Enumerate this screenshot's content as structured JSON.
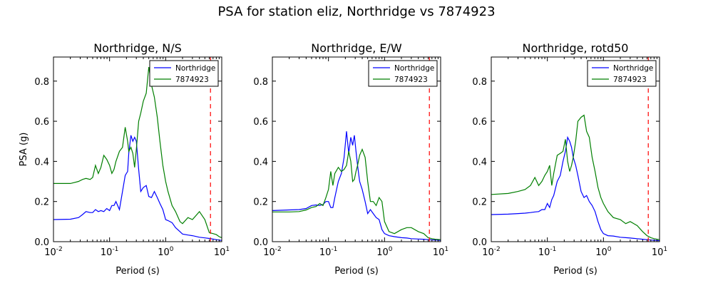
{
  "suptitle": "PSA for station eliz, Northridge vs 7874923",
  "chart_data": [
    {
      "type": "line",
      "title": "Northridge, N/S",
      "xlabel": "Period (s)",
      "ylabel": "PSA (g)",
      "xscale": "log",
      "xlim": [
        0.01,
        10
      ],
      "ylim": [
        0,
        0.92
      ],
      "x_ticks": [
        0.01,
        0.1,
        1,
        10
      ],
      "x_tick_labels": [
        [
          "10",
          "-2"
        ],
        [
          "10",
          "-1"
        ],
        [
          "10",
          "0"
        ],
        [
          "10",
          "1"
        ]
      ],
      "y_ticks": [
        0,
        0.2,
        0.4,
        0.6,
        0.8
      ],
      "y_tick_labels": [
        "0.0",
        "0.2",
        "0.4",
        "0.6",
        "0.8"
      ],
      "legend_position": "top-right",
      "vline": {
        "x": 6.3,
        "color": "#ff0000",
        "style": "dashed"
      },
      "series": [
        {
          "name": "Northridge",
          "color": "#0000ff",
          "x": [
            0.01,
            0.02,
            0.028,
            0.033,
            0.038,
            0.045,
            0.05,
            0.056,
            0.063,
            0.07,
            0.079,
            0.089,
            0.1,
            0.11,
            0.12,
            0.13,
            0.15,
            0.17,
            0.19,
            0.21,
            0.22,
            0.24,
            0.26,
            0.28,
            0.3,
            0.33,
            0.36,
            0.4,
            0.45,
            0.5,
            0.56,
            0.63,
            0.71,
            0.79,
            0.89,
            1.0,
            1.1,
            1.3,
            1.5,
            1.8,
            2.0,
            2.5,
            3.0,
            4.0,
            5.0,
            6.0,
            7.0,
            8.0,
            9.0,
            10.0
          ],
          "y": [
            0.11,
            0.112,
            0.12,
            0.135,
            0.15,
            0.145,
            0.145,
            0.16,
            0.15,
            0.155,
            0.15,
            0.165,
            0.155,
            0.18,
            0.18,
            0.2,
            0.16,
            0.25,
            0.33,
            0.35,
            0.44,
            0.53,
            0.5,
            0.52,
            0.5,
            0.36,
            0.25,
            0.27,
            0.28,
            0.225,
            0.22,
            0.25,
            0.22,
            0.19,
            0.16,
            0.11,
            0.105,
            0.095,
            0.07,
            0.05,
            0.038,
            0.033,
            0.03,
            0.022,
            0.019,
            0.016,
            0.013,
            0.01,
            0.008,
            0.006
          ]
        },
        {
          "name": "7874923",
          "color": "#007f00",
          "x": [
            0.01,
            0.02,
            0.028,
            0.033,
            0.038,
            0.045,
            0.05,
            0.056,
            0.063,
            0.07,
            0.079,
            0.089,
            0.1,
            0.11,
            0.12,
            0.13,
            0.15,
            0.17,
            0.19,
            0.21,
            0.22,
            0.24,
            0.26,
            0.28,
            0.3,
            0.33,
            0.36,
            0.4,
            0.45,
            0.5,
            0.56,
            0.63,
            0.71,
            0.79,
            0.89,
            1.0,
            1.1,
            1.3,
            1.5,
            1.8,
            2.0,
            2.5,
            3.0,
            4.0,
            5.0,
            6.0,
            7.0,
            8.0,
            9.0,
            10.0
          ],
          "y": [
            0.29,
            0.29,
            0.3,
            0.31,
            0.315,
            0.31,
            0.32,
            0.38,
            0.34,
            0.37,
            0.43,
            0.41,
            0.38,
            0.34,
            0.36,
            0.4,
            0.45,
            0.47,
            0.57,
            0.5,
            0.45,
            0.47,
            0.44,
            0.37,
            0.46,
            0.6,
            0.64,
            0.7,
            0.74,
            0.87,
            0.78,
            0.72,
            0.62,
            0.5,
            0.38,
            0.3,
            0.25,
            0.18,
            0.15,
            0.1,
            0.09,
            0.12,
            0.11,
            0.15,
            0.11,
            0.045,
            0.04,
            0.035,
            0.025,
            0.02
          ]
        }
      ]
    },
    {
      "type": "line",
      "title": "Northridge, E/W",
      "xlabel": "Period (s)",
      "ylabel": "",
      "xscale": "log",
      "xlim": [
        0.01,
        10
      ],
      "ylim": [
        0,
        0.92
      ],
      "x_ticks": [
        0.01,
        0.1,
        1,
        10
      ],
      "x_tick_labels": [
        [
          "10",
          "-2"
        ],
        [
          "10",
          "-1"
        ],
        [
          "10",
          "0"
        ],
        [
          "10",
          "1"
        ]
      ],
      "y_ticks": [
        0,
        0.2,
        0.4,
        0.6,
        0.8
      ],
      "y_tick_labels": [
        "0.0",
        "0.2",
        "0.4",
        "0.6",
        "0.8"
      ],
      "legend_position": "top-right",
      "vline": {
        "x": 6.3,
        "color": "#ff0000",
        "style": "dashed"
      },
      "series": [
        {
          "name": "Northridge",
          "color": "#0000ff",
          "x": [
            0.01,
            0.02,
            0.03,
            0.04,
            0.05,
            0.06,
            0.07,
            0.08,
            0.09,
            0.1,
            0.11,
            0.12,
            0.13,
            0.15,
            0.17,
            0.19,
            0.21,
            0.23,
            0.25,
            0.27,
            0.29,
            0.31,
            0.33,
            0.36,
            0.4,
            0.45,
            0.5,
            0.56,
            0.63,
            0.71,
            0.8,
            0.9,
            1.0,
            1.2,
            1.5,
            2.0,
            2.5,
            3.0,
            4.0,
            5.0,
            6.0,
            7.0,
            8.0,
            10.0
          ],
          "y": [
            0.155,
            0.158,
            0.16,
            0.165,
            0.18,
            0.183,
            0.18,
            0.185,
            0.2,
            0.2,
            0.17,
            0.17,
            0.22,
            0.3,
            0.34,
            0.42,
            0.55,
            0.44,
            0.52,
            0.48,
            0.53,
            0.45,
            0.38,
            0.3,
            0.26,
            0.2,
            0.14,
            0.16,
            0.14,
            0.12,
            0.11,
            0.06,
            0.04,
            0.03,
            0.025,
            0.02,
            0.018,
            0.015,
            0.013,
            0.012,
            0.01,
            0.009,
            0.008,
            0.006
          ]
        },
        {
          "name": "7874923",
          "color": "#007f00",
          "x": [
            0.01,
            0.02,
            0.03,
            0.04,
            0.05,
            0.06,
            0.07,
            0.08,
            0.09,
            0.1,
            0.11,
            0.12,
            0.13,
            0.15,
            0.17,
            0.19,
            0.21,
            0.23,
            0.25,
            0.27,
            0.29,
            0.31,
            0.33,
            0.36,
            0.4,
            0.45,
            0.5,
            0.56,
            0.63,
            0.71,
            0.8,
            0.9,
            1.0,
            1.2,
            1.5,
            2.0,
            2.5,
            3.0,
            4.0,
            5.0,
            6.0,
            7.0,
            8.0,
            10.0
          ],
          "y": [
            0.148,
            0.148,
            0.15,
            0.158,
            0.17,
            0.175,
            0.19,
            0.18,
            0.22,
            0.26,
            0.35,
            0.28,
            0.34,
            0.37,
            0.35,
            0.36,
            0.38,
            0.45,
            0.4,
            0.3,
            0.31,
            0.35,
            0.38,
            0.43,
            0.46,
            0.42,
            0.3,
            0.2,
            0.2,
            0.18,
            0.22,
            0.2,
            0.1,
            0.05,
            0.04,
            0.06,
            0.07,
            0.07,
            0.05,
            0.04,
            0.02,
            0.015,
            0.012,
            0.01
          ]
        }
      ]
    },
    {
      "type": "line",
      "title": "Northridge, rotd50",
      "xlabel": "Period (s)",
      "ylabel": "",
      "xscale": "log",
      "xlim": [
        0.01,
        10
      ],
      "ylim": [
        0,
        0.92
      ],
      "x_ticks": [
        0.01,
        0.1,
        1,
        10
      ],
      "x_tick_labels": [
        [
          "10",
          "-2"
        ],
        [
          "10",
          "-1"
        ],
        [
          "10",
          "0"
        ],
        [
          "10",
          "1"
        ]
      ],
      "y_ticks": [
        0,
        0.2,
        0.4,
        0.6,
        0.8
      ],
      "y_tick_labels": [
        "0.0",
        "0.2",
        "0.4",
        "0.6",
        "0.8"
      ],
      "legend_position": "top-right",
      "vline": {
        "x": 6.3,
        "color": "#ff0000",
        "style": "dashed"
      },
      "series": [
        {
          "name": "Northridge",
          "color": "#0000ff",
          "x": [
            0.01,
            0.02,
            0.03,
            0.04,
            0.05,
            0.06,
            0.07,
            0.08,
            0.09,
            0.1,
            0.11,
            0.12,
            0.13,
            0.15,
            0.17,
            0.19,
            0.21,
            0.23,
            0.25,
            0.27,
            0.29,
            0.32,
            0.35,
            0.4,
            0.45,
            0.5,
            0.56,
            0.63,
            0.71,
            0.8,
            0.9,
            1.0,
            1.2,
            1.5,
            2.0,
            2.5,
            3.0,
            4.0,
            5.0,
            6.0,
            7.0,
            8.0,
            10.0
          ],
          "y": [
            0.135,
            0.137,
            0.14,
            0.142,
            0.145,
            0.148,
            0.15,
            0.16,
            0.16,
            0.19,
            0.17,
            0.21,
            0.23,
            0.3,
            0.33,
            0.4,
            0.45,
            0.52,
            0.5,
            0.47,
            0.42,
            0.38,
            0.33,
            0.25,
            0.22,
            0.23,
            0.2,
            0.18,
            0.15,
            0.1,
            0.06,
            0.04,
            0.03,
            0.028,
            0.022,
            0.02,
            0.018,
            0.015,
            0.012,
            0.01,
            0.008,
            0.007,
            0.005
          ]
        },
        {
          "name": "7874923",
          "color": "#007f00",
          "x": [
            0.01,
            0.02,
            0.03,
            0.04,
            0.05,
            0.06,
            0.07,
            0.08,
            0.09,
            0.1,
            0.11,
            0.12,
            0.13,
            0.15,
            0.17,
            0.19,
            0.21,
            0.23,
            0.25,
            0.27,
            0.29,
            0.32,
            0.35,
            0.4,
            0.45,
            0.5,
            0.56,
            0.63,
            0.71,
            0.8,
            0.9,
            1.0,
            1.2,
            1.5,
            2.0,
            2.5,
            3.0,
            4.0,
            5.0,
            6.0,
            7.0,
            8.0,
            10.0
          ],
          "y": [
            0.235,
            0.24,
            0.25,
            0.26,
            0.28,
            0.32,
            0.28,
            0.3,
            0.33,
            0.35,
            0.38,
            0.28,
            0.34,
            0.43,
            0.44,
            0.45,
            0.51,
            0.4,
            0.35,
            0.38,
            0.42,
            0.5,
            0.6,
            0.62,
            0.63,
            0.55,
            0.52,
            0.42,
            0.35,
            0.27,
            0.22,
            0.19,
            0.15,
            0.12,
            0.11,
            0.09,
            0.1,
            0.08,
            0.05,
            0.03,
            0.02,
            0.015,
            0.01
          ]
        }
      ]
    }
  ]
}
